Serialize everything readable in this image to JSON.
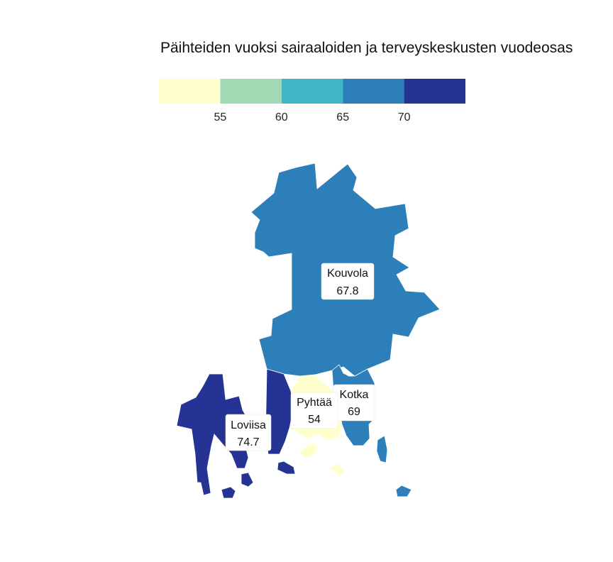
{
  "title": "Päihteiden vuoksi sairaaloiden ja terveyskeskusten vuodeosas",
  "legend": {
    "bins": [
      {
        "color": "#ffffcc"
      },
      {
        "color": "#a1dab4"
      },
      {
        "color": "#41b6c4"
      },
      {
        "color": "#2c7fb8"
      },
      {
        "color": "#253494"
      }
    ],
    "ticks": [
      "55",
      "60",
      "65",
      "70"
    ]
  },
  "regions": [
    {
      "name": "Kouvola",
      "value": "67.8",
      "color": "#2c7fb8"
    },
    {
      "name": "Kotka",
      "value": "69",
      "color": "#2c7fb8"
    },
    {
      "name": "Pyhtää",
      "value": "54",
      "color": "#ffffcc"
    },
    {
      "name": "Loviisa",
      "value": "74.7",
      "color": "#253494"
    }
  ]
}
